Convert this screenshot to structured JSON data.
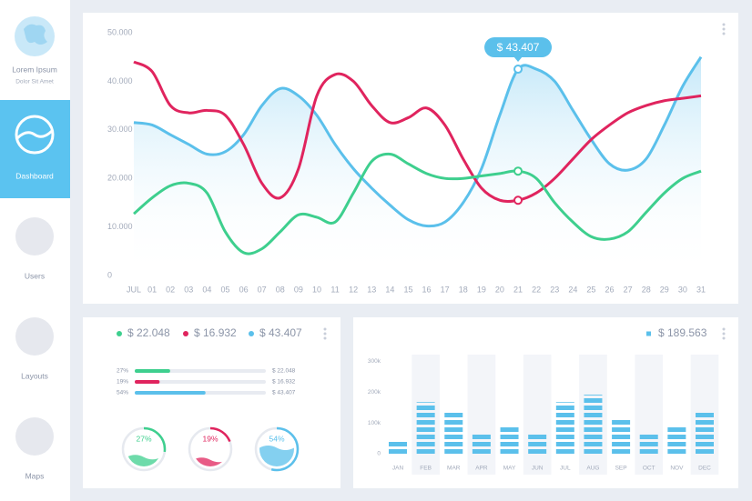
{
  "sidebar": {
    "profile": {
      "name": "Lorem Ipsum",
      "subtitle": "Dolor Sit Amet"
    },
    "nav": [
      "Dashboard",
      "Users",
      "Layouts",
      "Maps"
    ]
  },
  "chart_data": [
    {
      "type": "line",
      "categories": [
        "JUL",
        "01",
        "02",
        "03",
        "04",
        "05",
        "06",
        "07",
        "08",
        "09",
        "10",
        "11",
        "12",
        "13",
        "14",
        "15",
        "16",
        "17",
        "18",
        "19",
        "20",
        "21",
        "22",
        "23",
        "24",
        "25",
        "26",
        "27",
        "28",
        "29",
        "30",
        "31"
      ],
      "series": [
        {
          "color": "#5bc0eb",
          "values": [
            31500,
            31000,
            29000,
            27000,
            25000,
            25500,
            29000,
            35000,
            38500,
            37000,
            33000,
            27000,
            22000,
            18000,
            14500,
            11500,
            10200,
            11000,
            15000,
            22000,
            33000,
            42500,
            42500,
            40000,
            34000,
            28000,
            23000,
            21700,
            24000,
            31000,
            39000,
            45000
          ]
        },
        {
          "color": "#e0245e",
          "values": [
            44000,
            42000,
            35000,
            33500,
            34000,
            33000,
            27000,
            19000,
            16000,
            22000,
            37000,
            41400,
            40000,
            35000,
            31500,
            32500,
            34500,
            31000,
            24000,
            18000,
            15500,
            15500,
            17000,
            20000,
            24000,
            28000,
            31000,
            33500,
            35000,
            36000,
            36500,
            37000
          ]
        },
        {
          "color": "#3ecf8e",
          "values": [
            12700,
            16000,
            18500,
            19000,
            17000,
            9000,
            4700,
            5500,
            9000,
            12500,
            12000,
            11000,
            17000,
            23500,
            25000,
            23000,
            21000,
            20000,
            20000,
            20500,
            21000,
            21500,
            20000,
            15000,
            11000,
            8000,
            7500,
            9000,
            13000,
            17000,
            20000,
            21500
          ]
        }
      ],
      "ylim": [
        0,
        50000
      ],
      "yticks": [
        0,
        {
          "value": 10000,
          "label": "10.000"
        },
        {
          "value": 20000,
          "label": "20.000"
        },
        {
          "value": 30000,
          "label": "30.000"
        },
        {
          "value": 40000,
          "label": "40.000"
        },
        {
          "value": 50000,
          "label": "50.000"
        }
      ],
      "annotation": "$ 43.407"
    },
    {
      "type": "progress",
      "legend": [
        "$ 22.048",
        "$ 16.932",
        "$ 43.407"
      ],
      "colors": [
        "#3ecf8e",
        "#e0245e",
        "#5bc0eb"
      ],
      "values": [
        27,
        19,
        54
      ],
      "value_labels": [
        "27%",
        "19%",
        "54%"
      ],
      "xlim": [
        0,
        100
      ]
    },
    {
      "type": "bar",
      "legend": "$ 189.563",
      "color": "#5bc0eb",
      "categories": [
        "JAN",
        "FEB",
        "MAR",
        "APR",
        "MAY",
        "JUN",
        "JUL",
        "AUG",
        "SEP",
        "OCT",
        "NOV",
        "DEC"
      ],
      "values": [
        52000,
        176000,
        148000,
        76000,
        100000,
        76000,
        176000,
        200000,
        124000,
        76000,
        100000,
        148000
      ],
      "ylim": [
        0,
        330000
      ],
      "yticks": [
        0,
        {
          "value": 100000,
          "label": "100k"
        },
        {
          "value": 200000,
          "label": "200k"
        },
        {
          "value": 300000,
          "label": "300k"
        }
      ]
    }
  ]
}
